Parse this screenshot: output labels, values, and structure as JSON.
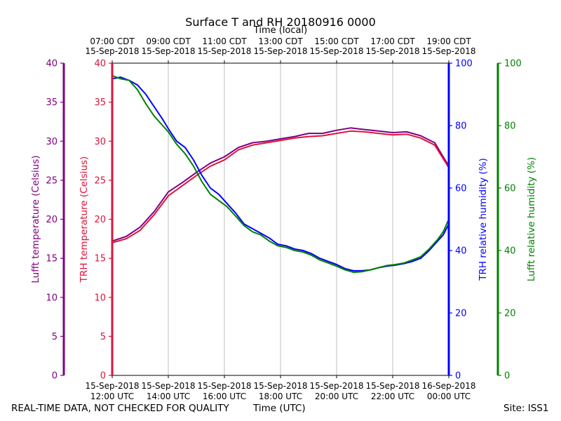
{
  "chart_data": {
    "type": "line",
    "title": "Surface T and RH 20180916 0000",
    "top_axis": {
      "label": "Time (local)",
      "ticks": [
        {
          "x": 0,
          "line1": "07:00 CDT",
          "line2": "15-Sep-2018"
        },
        {
          "x": 2,
          "line1": "09:00 CDT",
          "line2": "15-Sep-2018"
        },
        {
          "x": 4,
          "line1": "11:00 CDT",
          "line2": "15-Sep-2018"
        },
        {
          "x": 6,
          "line1": "13:00 CDT",
          "line2": "15-Sep-2018"
        },
        {
          "x": 8,
          "line1": "15:00 CDT",
          "line2": "15-Sep-2018"
        },
        {
          "x": 10,
          "line1": "17:00 CDT",
          "line2": "15-Sep-2018"
        },
        {
          "x": 12,
          "line1": "19:00 CDT",
          "line2": "15-Sep-2018"
        }
      ]
    },
    "bottom_axis": {
      "label": "Time (UTC)",
      "ticks": [
        {
          "x": 0,
          "line1": "15-Sep-2018",
          "line2": "12:00 UTC"
        },
        {
          "x": 2,
          "line1": "15-Sep-2018",
          "line2": "14:00 UTC"
        },
        {
          "x": 4,
          "line1": "15-Sep-2018",
          "line2": "16:00 UTC"
        },
        {
          "x": 6,
          "line1": "15-Sep-2018",
          "line2": "18:00 UTC"
        },
        {
          "x": 8,
          "line1": "15-Sep-2018",
          "line2": "20:00 UTC"
        },
        {
          "x": 10,
          "line1": "15-Sep-2018",
          "line2": "22:00 UTC"
        },
        {
          "x": 12,
          "line1": "16-Sep-2018",
          "line2": "00:00 UTC"
        }
      ]
    },
    "xlim": [
      0,
      12
    ],
    "grid": "vertical",
    "axes": {
      "lufft_temp": {
        "label": "Lufft temperature (Celsius)",
        "range": [
          0,
          40
        ],
        "ticks": [
          0,
          5,
          10,
          15,
          20,
          25,
          30,
          35,
          40
        ],
        "color": "#800080"
      },
      "trh_temp": {
        "label": "TRH temperature (Celsius)",
        "range": [
          0,
          40
        ],
        "ticks": [
          0,
          5,
          10,
          15,
          20,
          25,
          30,
          35,
          40
        ],
        "color": "#dc143c"
      },
      "trh_rh": {
        "label": "TRH relative humidity (%)",
        "range": [
          0,
          100
        ],
        "ticks": [
          0,
          20,
          40,
          60,
          80,
          100
        ],
        "color": "#0000ff"
      },
      "lufft_rh": {
        "label": "Lufft relative humidity (%)",
        "range": [
          0,
          100
        ],
        "ticks": [
          0,
          20,
          40,
          60,
          80,
          100
        ],
        "color": "#008000"
      }
    },
    "series": [
      {
        "key": "lufft_temp_series",
        "axis": "lufft_temp",
        "color": "#800080",
        "x": [
          0,
          0.5,
          1,
          1.5,
          2,
          2.5,
          3,
          3.5,
          4,
          4.5,
          5,
          5.5,
          6,
          6.5,
          7,
          7.5,
          8,
          8.5,
          9,
          9.5,
          10,
          10.5,
          11,
          11.5,
          12
        ],
        "y": [
          17.2,
          17.8,
          19.0,
          21.0,
          23.5,
          24.7,
          26.0,
          27.2,
          28.0,
          29.2,
          29.8,
          30.0,
          30.3,
          30.6,
          31.0,
          31.0,
          31.4,
          31.7,
          31.5,
          31.3,
          31.1,
          31.2,
          30.7,
          29.8,
          26.8
        ]
      },
      {
        "key": "trh_temp_series",
        "axis": "trh_temp",
        "color": "#dc143c",
        "x": [
          0,
          0.5,
          1,
          1.5,
          2,
          2.5,
          3,
          3.5,
          4,
          4.5,
          5,
          5.5,
          6,
          6.5,
          7,
          7.5,
          8,
          8.5,
          9,
          9.5,
          10,
          10.5,
          11,
          11.5,
          12
        ],
        "y": [
          17.0,
          17.5,
          18.6,
          20.6,
          23.0,
          24.3,
          25.6,
          26.8,
          27.6,
          28.9,
          29.5,
          29.8,
          30.1,
          30.4,
          30.6,
          30.7,
          31.0,
          31.3,
          31.2,
          31.0,
          30.8,
          30.9,
          30.4,
          29.5,
          26.6
        ]
      },
      {
        "key": "trh_rh_series",
        "axis": "trh_rh",
        "color": "#0000ff",
        "x": [
          0,
          0.3,
          0.6,
          0.9,
          1.2,
          1.5,
          1.8,
          2.0,
          2.3,
          2.6,
          2.9,
          3.2,
          3.5,
          3.8,
          4.1,
          4.4,
          4.7,
          5.0,
          5.3,
          5.6,
          5.9,
          6.2,
          6.5,
          6.8,
          7.1,
          7.4,
          7.7,
          8.0,
          8.3,
          8.6,
          8.9,
          9.2,
          9.5,
          9.8,
          10.1,
          10.4,
          10.7,
          11.0,
          11.3,
          11.6,
          11.8,
          12.0
        ],
        "y": [
          95.0,
          95.5,
          94.5,
          93.0,
          90.0,
          86.0,
          82.0,
          79.0,
          75.0,
          73.0,
          69.0,
          64.0,
          60.0,
          58.0,
          55.0,
          52.0,
          48.5,
          47.0,
          45.5,
          44.0,
          42.0,
          41.5,
          40.5,
          40.0,
          39.0,
          37.5,
          36.5,
          35.5,
          34.2,
          33.5,
          33.5,
          33.8,
          34.5,
          35.0,
          35.3,
          35.8,
          36.5,
          37.5,
          40.0,
          43.0,
          45.0,
          48.5
        ]
      },
      {
        "key": "lufft_rh_series",
        "axis": "lufft_rh",
        "color": "#008000",
        "x": [
          0,
          0.3,
          0.6,
          0.9,
          1.2,
          1.5,
          1.8,
          2.0,
          2.3,
          2.6,
          2.9,
          3.2,
          3.5,
          3.8,
          4.1,
          4.4,
          4.7,
          5.0,
          5.3,
          5.6,
          5.9,
          6.2,
          6.5,
          6.8,
          7.1,
          7.4,
          7.7,
          8.0,
          8.3,
          8.6,
          8.9,
          9.2,
          9.5,
          9.8,
          10.1,
          10.4,
          10.7,
          11.0,
          11.3,
          11.6,
          11.8,
          12.0
        ],
        "y": [
          96.0,
          95.0,
          94.5,
          91.5,
          87.0,
          83.0,
          80.0,
          78.0,
          74.0,
          71.0,
          67.0,
          62.0,
          58.0,
          56.0,
          54.0,
          51.0,
          48.0,
          46.0,
          45.0,
          43.0,
          41.5,
          41.0,
          40.0,
          39.5,
          38.5,
          37.0,
          36.0,
          35.0,
          33.8,
          33.0,
          33.2,
          33.8,
          34.5,
          35.2,
          35.5,
          36.0,
          37.0,
          38.0,
          40.5,
          43.5,
          46.0,
          50.0
        ]
      }
    ]
  },
  "footer": {
    "left": "REAL-TIME DATA, NOT CHECKED FOR QUALITY",
    "center": "Time (UTC)",
    "right": "Site: ISS1"
  }
}
